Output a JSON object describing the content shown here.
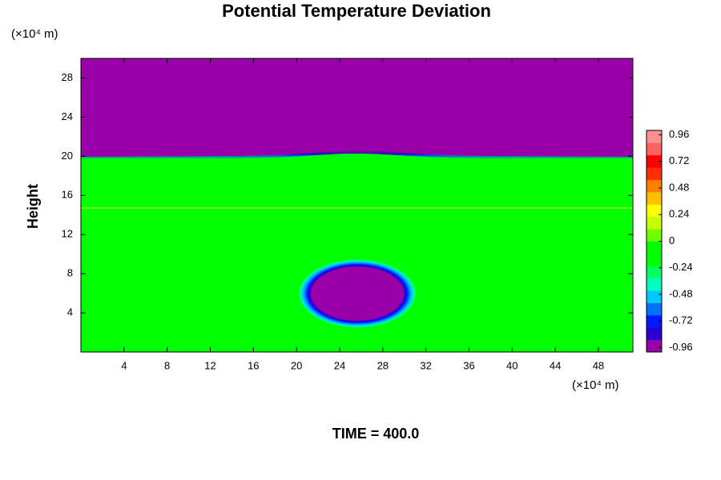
{
  "chart_data": {
    "type": "heatmap",
    "title": "Potential Temperature Deviation",
    "y_label": "Height",
    "x_unit": "(×10⁴ m)",
    "y_unit": "(×10⁴ m)",
    "footer": "TIME = 400.0",
    "xlim": [
      0,
      51.2
    ],
    "xticks": [
      4,
      8,
      12,
      16,
      20,
      24,
      28,
      32,
      36,
      40,
      44,
      48
    ],
    "ylim": [
      0,
      30
    ],
    "yticks": [
      4,
      8,
      12,
      16,
      20,
      24,
      28
    ],
    "clim": [
      -1,
      1
    ],
    "cticks": [
      0.96,
      0.72,
      0.48,
      0.24,
      0,
      -0.24,
      -0.48,
      -0.72,
      -0.96
    ],
    "colormap": [
      "#9900a8",
      "#2a00d0",
      "#0018ff",
      "#0070ff",
      "#00c8ff",
      "#00ffc0",
      "#00ff60",
      "#00ff00",
      "#00ff00",
      "#70ff00",
      "#c8ff00",
      "#ffff00",
      "#ffc000",
      "#ff8000",
      "#ff3000",
      "#ff0000",
      "#ff6060",
      "#ff9090"
    ]
  }
}
